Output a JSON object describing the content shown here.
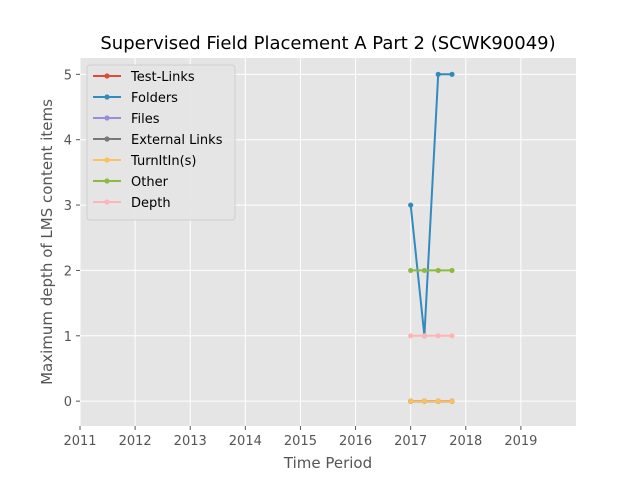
{
  "chart_data": {
    "type": "line",
    "title": "Supervised Field Placement A Part 2 (SCWK90049)",
    "xlabel": "Time Period",
    "ylabel": "Maximum depth of LMS content items",
    "xlim": [
      2011,
      2020
    ],
    "ylim": [
      -0.38,
      5.25
    ],
    "xticks": [
      2011,
      2012,
      2013,
      2014,
      2015,
      2016,
      2017,
      2018,
      2019
    ],
    "yticks": [
      0,
      1,
      2,
      3,
      4,
      5
    ],
    "grid": true,
    "legend_position": "top-left",
    "x": [
      2017.0,
      2017.25,
      2017.5,
      2017.75
    ],
    "series": [
      {
        "name": "Test-Links",
        "color": "#E24A33",
        "values": [
          0,
          0,
          0,
          0
        ]
      },
      {
        "name": "Folders",
        "color": "#348ABD",
        "values": [
          3,
          1,
          5,
          5
        ]
      },
      {
        "name": "Files",
        "color": "#988ED5",
        "values": [
          0,
          0,
          0,
          0
        ]
      },
      {
        "name": "External Links",
        "color": "#777777",
        "values": [
          0,
          0,
          0,
          0
        ]
      },
      {
        "name": "TurnItIn(s)",
        "color": "#FBC15E",
        "values": [
          0,
          0,
          0,
          0
        ]
      },
      {
        "name": "Other",
        "color": "#8EBA42",
        "values": [
          2,
          2,
          2,
          2
        ]
      },
      {
        "name": "Depth",
        "color": "#FFB5B8",
        "values": [
          1,
          1,
          1,
          1
        ]
      }
    ]
  }
}
